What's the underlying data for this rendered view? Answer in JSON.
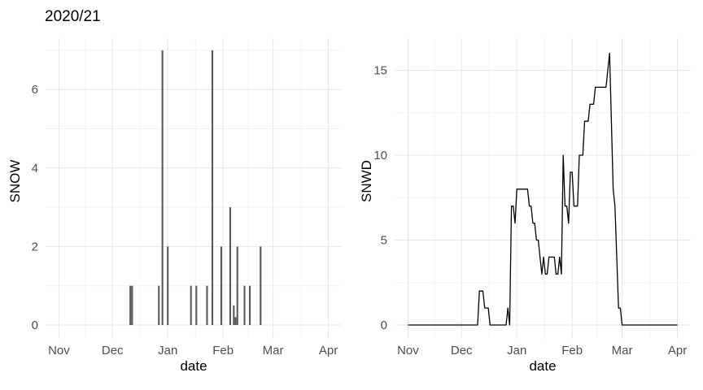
{
  "title": "2020/21",
  "colors": {
    "background": "#ffffff",
    "grid_major": "#e7e7e7",
    "grid_minor": "#f3f3f3",
    "bar_fill": "#595959",
    "line_stroke": "#000000",
    "tick_label": "#4d4d4d",
    "axis_title": "#000000",
    "title_color": "#000000"
  },
  "chart_data": [
    {
      "type": "bar",
      "title": "2020/21",
      "xlabel": "date",
      "ylabel": "SNOW",
      "x_tick_labels": [
        "Nov",
        "Dec",
        "Jan",
        "Feb",
        "Mar",
        "Apr"
      ],
      "x_range": [
        "Nov 1",
        "Apr 1"
      ],
      "y_ticks": [
        0,
        2,
        4,
        6
      ],
      "y_minor": [
        1,
        3,
        5,
        7
      ],
      "ylim": [
        0,
        7.3
      ],
      "grid": true,
      "legend": false,
      "bars_note": "daily snowfall; all dates not listed have value 0",
      "bars": [
        [
          "12-11",
          1
        ],
        [
          "12-12",
          1
        ],
        [
          "12-27",
          1
        ],
        [
          "12-29",
          7
        ],
        [
          "01-01",
          2
        ],
        [
          "01-14",
          1
        ],
        [
          "01-17",
          1
        ],
        [
          "01-23",
          1
        ],
        [
          "01-26",
          7
        ],
        [
          "01-31",
          2
        ],
        [
          "02-05",
          3
        ],
        [
          "02-07",
          0.5
        ],
        [
          "02-08",
          0.2
        ],
        [
          "02-09",
          2
        ],
        [
          "02-13",
          1
        ],
        [
          "02-16",
          1
        ],
        [
          "02-22",
          2
        ]
      ]
    },
    {
      "type": "line",
      "title": "",
      "xlabel": "date",
      "ylabel": "SNWD",
      "x_tick_labels": [
        "Nov",
        "Dec",
        "Jan",
        "Feb",
        "Mar",
        "Apr"
      ],
      "x_range": [
        "Nov 1",
        "Apr 1"
      ],
      "y_ticks": [
        0,
        5,
        10,
        15
      ],
      "y_minor": [
        2.5,
        7.5,
        12.5
      ],
      "ylim": [
        0,
        16.9
      ],
      "grid": true,
      "legend": false,
      "series_note": "daily snow depth encoded as run-length segments [start,end,value], inclusive",
      "series": [
        {
          "name": "SNWD",
          "segments": [
            [
              "11-01",
              "12-10",
              0
            ],
            [
              "12-11",
              "12-13",
              2
            ],
            [
              "12-14",
              "12-16",
              1
            ],
            [
              "12-17",
              "12-26",
              0
            ],
            [
              "12-27",
              "12-27",
              1
            ],
            [
              "12-28",
              "12-28",
              0
            ],
            [
              "12-29",
              "12-30",
              7
            ],
            [
              "12-31",
              "12-31",
              6
            ],
            [
              "01-01",
              "01-07",
              8
            ],
            [
              "01-08",
              "01-09",
              7
            ],
            [
              "01-10",
              "01-11",
              6
            ],
            [
              "01-12",
              "01-13",
              5
            ],
            [
              "01-14",
              "01-14",
              4
            ],
            [
              "01-15",
              "01-15",
              3
            ],
            [
              "01-16",
              "01-16",
              4
            ],
            [
              "01-17",
              "01-18",
              3
            ],
            [
              "01-19",
              "01-22",
              4
            ],
            [
              "01-23",
              "01-24",
              3
            ],
            [
              "01-25",
              "01-25",
              4
            ],
            [
              "01-26",
              "01-26",
              3
            ],
            [
              "01-27",
              "01-27",
              10
            ],
            [
              "01-28",
              "01-29",
              7
            ],
            [
              "01-30",
              "01-30",
              6
            ],
            [
              "01-31",
              "02-01",
              9
            ],
            [
              "02-02",
              "02-04",
              7
            ],
            [
              "02-05",
              "02-07",
              10
            ],
            [
              "02-08",
              "02-10",
              12
            ],
            [
              "02-11",
              "02-13",
              13
            ],
            [
              "02-14",
              "02-20",
              14
            ],
            [
              "02-21",
              "02-21",
              15
            ],
            [
              "02-22",
              "02-22",
              16
            ],
            [
              "02-23",
              "02-23",
              12
            ],
            [
              "02-24",
              "02-24",
              8
            ],
            [
              "02-25",
              "02-25",
              7
            ],
            [
              "02-26",
              "02-26",
              4
            ],
            [
              "02-27",
              "02-28",
              1
            ],
            [
              "03-01",
              "04-01",
              0
            ]
          ]
        }
      ]
    }
  ]
}
